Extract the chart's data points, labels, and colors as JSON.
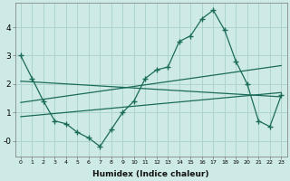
{
  "xlabel": "Humidex (Indice chaleur)",
  "bg_color": "#ceeae6",
  "grid_color": "#aed4d0",
  "line_color": "#1a6b5a",
  "xlim": [
    -0.5,
    23.5
  ],
  "ylim": [
    -0.55,
    4.85
  ],
  "line1_x": [
    0,
    1,
    2,
    3,
    4,
    5,
    6,
    7,
    8,
    9,
    10,
    11,
    12,
    13,
    14,
    15,
    16,
    17,
    18,
    19,
    20,
    21,
    22,
    23
  ],
  "line1_y": [
    3.0,
    2.2,
    1.4,
    0.7,
    0.6,
    0.3,
    0.1,
    -0.2,
    0.4,
    1.0,
    1.4,
    2.2,
    2.5,
    2.6,
    3.5,
    3.7,
    4.3,
    4.6,
    3.9,
    2.8,
    2.0,
    0.7,
    0.5,
    1.6
  ],
  "line2_x": [
    0,
    23
  ],
  "line2_y": [
    2.1,
    1.55
  ],
  "line3_x": [
    0,
    23
  ],
  "line3_y": [
    1.35,
    2.65
  ],
  "line4_x": [
    0,
    23
  ],
  "line4_y": [
    0.85,
    1.7
  ]
}
